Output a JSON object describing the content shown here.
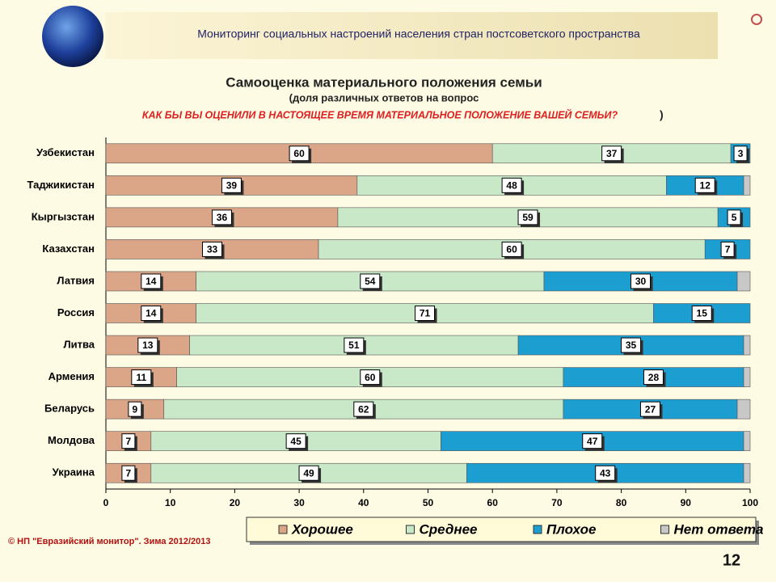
{
  "header": {
    "title": "Мониторинг социальных настроений населения стран постсоветского пространства"
  },
  "chart_data": {
    "type": "bar",
    "orientation": "horizontal",
    "stacked": true,
    "title": "Самооценка материального положения семьи",
    "subtitle": "(доля различных ответов на вопрос",
    "question": "КАК БЫ ВЫ ОЦЕНИЛИ В НАСТОЯЩЕЕ ВРЕМЯ МАТЕРИАЛЬНОЕ ПОЛОЖЕНИЕ ВАШЕЙ СЕМЬИ?",
    "question_close": ")",
    "categories": [
      "Узбекистан",
      "Таджикистан",
      "Кыргызстан",
      "Казахстан",
      "Латвия",
      "Россия",
      "Литва",
      "Армения",
      "Беларусь",
      "Молдова",
      "Украина"
    ],
    "series": [
      {
        "name": "Хорошее",
        "color": "#dba688",
        "values": [
          60,
          39,
          36,
          33,
          14,
          14,
          13,
          11,
          9,
          7,
          7
        ]
      },
      {
        "name": "Среднее",
        "color": "#c8e8c8",
        "values": [
          37,
          48,
          59,
          60,
          54,
          71,
          51,
          60,
          62,
          45,
          49
        ]
      },
      {
        "name": "Плохое",
        "color": "#1c9fd0",
        "values": [
          3,
          12,
          5,
          7,
          30,
          15,
          35,
          28,
          27,
          47,
          43
        ]
      },
      {
        "name": "Нет ответа",
        "color": "#c8c8c8",
        "values": [
          0,
          1,
          0,
          0,
          2,
          0,
          1,
          1,
          2,
          1,
          1
        ]
      }
    ],
    "xlim": [
      0,
      100
    ],
    "xticks": [
      0,
      10,
      20,
      30,
      40,
      50,
      60,
      70,
      80,
      90,
      100
    ],
    "grid": false
  },
  "footer": {
    "copyright": "© НП \"Евразийский монитор\". Зима 2012/2013",
    "page_number": 12
  }
}
